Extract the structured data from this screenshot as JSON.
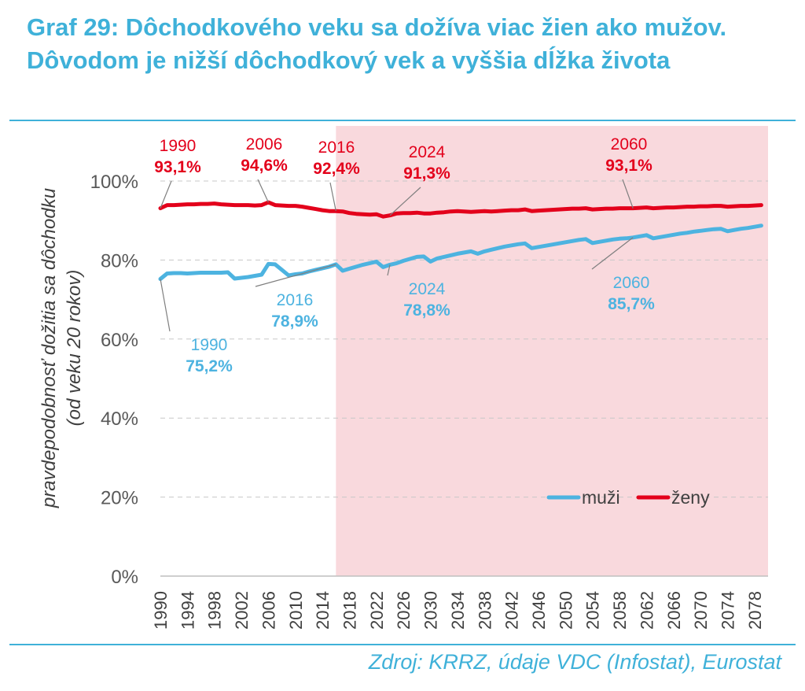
{
  "title": "Graf 29: Dôchodkového veku sa dožíva viac žien ako mužov. Dôvodom je nižší dôchodkový vek a vyššia dĺžka života",
  "source": "Zdroj: KRRZ, údaje VDC (Infostat), Eurostat",
  "colors": {
    "men": "#4db3e0",
    "women": "#e3001b",
    "projection_bg": "#f9d9dd",
    "accent": "#3fb1d9"
  },
  "chart_data": {
    "type": "line",
    "ylabel": [
      "pravdepodobnosť dožitia sa dôchodku",
      "(od veku 20 rokov)"
    ],
    "ylim": [
      0,
      100
    ],
    "yticks": [
      0,
      20,
      40,
      60,
      80,
      100
    ],
    "ytick_labels": [
      "0%",
      "20%",
      "40%",
      "60%",
      "80%",
      "100%"
    ],
    "xlim": [
      1990,
      2080
    ],
    "xticks": [
      1990,
      1994,
      1998,
      2002,
      2006,
      2010,
      2014,
      2018,
      2022,
      2026,
      2030,
      2034,
      2038,
      2042,
      2046,
      2050,
      2054,
      2058,
      2062,
      2066,
      2070,
      2074,
      2078
    ],
    "grid": true,
    "projection_start": 2016,
    "legend_position": "bottom-right",
    "series": [
      {
        "name": "muži",
        "color": "#4db3e0",
        "x": [
          1990,
          1991,
          1992,
          1993,
          1994,
          1995,
          1996,
          1997,
          1998,
          1999,
          2000,
          2001,
          2002,
          2003,
          2004,
          2005,
          2006,
          2007,
          2008,
          2009,
          2010,
          2011,
          2012,
          2013,
          2014,
          2015,
          2016,
          2017,
          2018,
          2019,
          2020,
          2021,
          2022,
          2023,
          2024,
          2025,
          2026,
          2027,
          2028,
          2029,
          2030,
          2031,
          2032,
          2033,
          2034,
          2035,
          2036,
          2037,
          2038,
          2039,
          2040,
          2041,
          2042,
          2043,
          2044,
          2045,
          2046,
          2047,
          2048,
          2049,
          2050,
          2051,
          2052,
          2053,
          2054,
          2055,
          2056,
          2057,
          2058,
          2059,
          2060,
          2061,
          2062,
          2063,
          2064,
          2065,
          2066,
          2067,
          2068,
          2069,
          2070,
          2071,
          2072,
          2073,
          2074,
          2075,
          2076,
          2077,
          2078,
          2079
        ],
        "values": [
          75.2,
          76.6,
          76.7,
          76.7,
          76.6,
          76.7,
          76.8,
          76.8,
          76.8,
          76.8,
          76.9,
          75.3,
          75.5,
          75.7,
          76.0,
          76.3,
          79.0,
          78.9,
          77.5,
          76.1,
          76.4,
          76.6,
          77.1,
          77.5,
          77.9,
          78.3,
          78.9,
          77.3,
          77.8,
          78.3,
          78.8,
          79.2,
          79.6,
          78.2,
          78.8,
          79.2,
          79.8,
          80.3,
          80.8,
          80.9,
          79.6,
          80.4,
          80.8,
          81.2,
          81.6,
          81.9,
          82.2,
          81.6,
          82.2,
          82.6,
          83.0,
          83.4,
          83.7,
          84.0,
          84.2,
          83.0,
          83.3,
          83.6,
          83.9,
          84.2,
          84.5,
          84.8,
          85.1,
          85.3,
          84.3,
          84.6,
          84.9,
          85.2,
          85.4,
          85.5,
          85.7,
          86.0,
          86.3,
          85.5,
          85.8,
          86.1,
          86.4,
          86.7,
          86.9,
          87.2,
          87.4,
          87.6,
          87.8,
          87.9,
          87.3,
          87.6,
          87.9,
          88.1,
          88.4,
          88.7
        ]
      },
      {
        "name": "ženy",
        "color": "#e3001b",
        "x": [
          1990,
          1991,
          1992,
          1993,
          1994,
          1995,
          1996,
          1997,
          1998,
          1999,
          2000,
          2001,
          2002,
          2003,
          2004,
          2005,
          2006,
          2007,
          2008,
          2009,
          2010,
          2011,
          2012,
          2013,
          2014,
          2015,
          2016,
          2017,
          2018,
          2019,
          2020,
          2021,
          2022,
          2023,
          2024,
          2025,
          2026,
          2027,
          2028,
          2029,
          2030,
          2031,
          2032,
          2033,
          2034,
          2035,
          2036,
          2037,
          2038,
          2039,
          2040,
          2041,
          2042,
          2043,
          2044,
          2045,
          2046,
          2047,
          2048,
          2049,
          2050,
          2051,
          2052,
          2053,
          2054,
          2055,
          2056,
          2057,
          2058,
          2059,
          2060,
          2061,
          2062,
          2063,
          2064,
          2065,
          2066,
          2067,
          2068,
          2069,
          2070,
          2071,
          2072,
          2073,
          2074,
          2075,
          2076,
          2077,
          2078,
          2079
        ],
        "values": [
          93.1,
          93.9,
          93.9,
          94.0,
          94.1,
          94.1,
          94.2,
          94.2,
          94.3,
          94.1,
          94.0,
          93.9,
          93.9,
          93.9,
          93.8,
          93.9,
          94.6,
          93.9,
          93.8,
          93.7,
          93.7,
          93.5,
          93.2,
          92.9,
          92.6,
          92.4,
          92.4,
          92.3,
          91.9,
          91.7,
          91.6,
          91.5,
          91.6,
          91.0,
          91.3,
          91.8,
          91.9,
          91.9,
          92.0,
          91.8,
          91.8,
          92.0,
          92.1,
          92.3,
          92.4,
          92.3,
          92.2,
          92.3,
          92.4,
          92.3,
          92.4,
          92.5,
          92.6,
          92.6,
          92.8,
          92.4,
          92.5,
          92.6,
          92.7,
          92.8,
          92.9,
          93.0,
          93.0,
          93.1,
          92.8,
          92.9,
          93.0,
          93.0,
          93.1,
          93.1,
          93.1,
          93.2,
          93.3,
          93.1,
          93.2,
          93.3,
          93.3,
          93.4,
          93.5,
          93.5,
          93.6,
          93.6,
          93.7,
          93.7,
          93.5,
          93.6,
          93.7,
          93.7,
          93.8,
          93.9
        ]
      }
    ],
    "annotations": [
      {
        "series": "ženy",
        "x": 1990,
        "year": "1990",
        "value": "93,1%"
      },
      {
        "series": "ženy",
        "x": 2006,
        "year": "2006",
        "value": "94,6%"
      },
      {
        "series": "ženy",
        "x": 2016,
        "year": "2016",
        "value": "92,4%"
      },
      {
        "series": "ženy",
        "x": 2024,
        "year": "2024",
        "value": "91,3%"
      },
      {
        "series": "ženy",
        "x": 2060,
        "year": "2060",
        "value": "93,1%"
      },
      {
        "series": "muži",
        "x": 1990,
        "year": "1990",
        "value": "75,2%"
      },
      {
        "series": "muži",
        "x": 2016,
        "year": "2016",
        "value": "78,9%"
      },
      {
        "series": "muži",
        "x": 2024,
        "year": "2024",
        "value": "78,8%"
      },
      {
        "series": "muži",
        "x": 2060,
        "year": "2060",
        "value": "85,7%"
      }
    ]
  }
}
